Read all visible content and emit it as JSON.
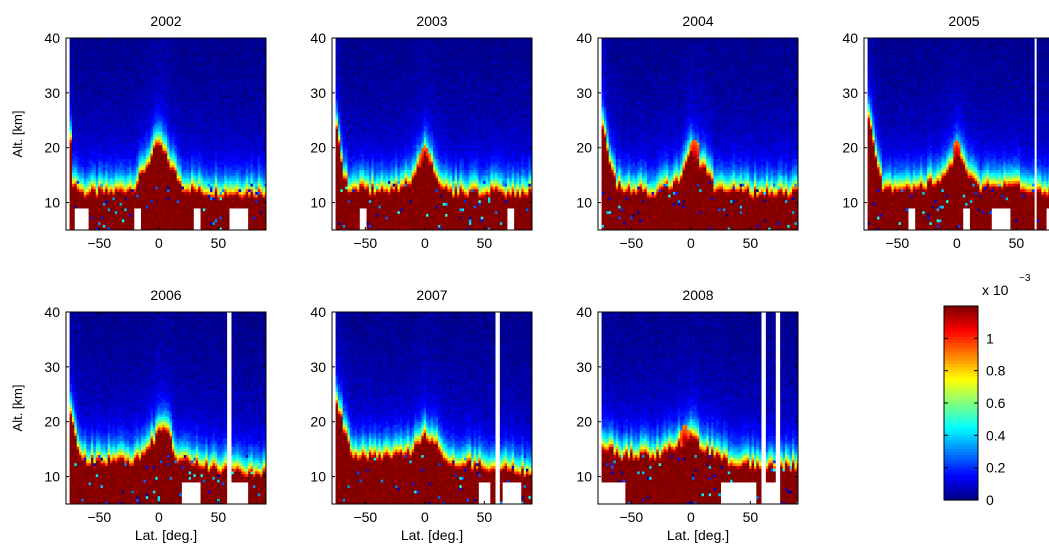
{
  "figure": {
    "ylabel": "Alt. [km]",
    "xlabel": "Lat. [deg.]"
  },
  "colorbar": {
    "exponent_base": "x 10",
    "exponent_power": "−3",
    "ticks": [
      {
        "value": 0,
        "label": "0"
      },
      {
        "value": 0.2,
        "label": "0.2"
      },
      {
        "value": 0.4,
        "label": "0.4"
      },
      {
        "value": 0.6,
        "label": "0.6"
      },
      {
        "value": 0.8,
        "label": "0.8"
      },
      {
        "value": 1,
        "label": "1"
      }
    ],
    "range": [
      0,
      1.2
    ],
    "colormap": "jet"
  },
  "chart_data": [
    {
      "type": "heatmap",
      "title": "2002",
      "xlim": [
        -78,
        90
      ],
      "ylim": [
        5,
        40
      ],
      "x_ticks": [
        -50,
        0,
        50
      ],
      "x_tick_labels": [
        "−50",
        "0",
        "50"
      ],
      "y_ticks": [
        10,
        20,
        30,
        40
      ],
      "y_tick_labels": [
        "10",
        "20",
        "30",
        "40"
      ],
      "data_lat_range": [
        -75,
        90
      ],
      "gaps": [],
      "profile": [
        [
          -75,
          25
        ],
        [
          -72,
          15
        ],
        [
          -65,
          13
        ],
        [
          -40,
          13
        ],
        [
          -20,
          14
        ],
        [
          -10,
          18
        ],
        [
          0,
          22
        ],
        [
          10,
          18
        ],
        [
          20,
          14
        ],
        [
          40,
          13
        ],
        [
          60,
          13
        ],
        [
          90,
          13
        ]
      ],
      "enhancements": [
        [
          0,
          16,
          6
        ]
      ],
      "missing_bottom": [
        [
          -70,
          -60
        ],
        [
          -20,
          -15
        ],
        [
          30,
          35
        ],
        [
          60,
          75
        ]
      ]
    },
    {
      "type": "heatmap",
      "title": "2003",
      "xlim": [
        -78,
        90
      ],
      "ylim": [
        5,
        40
      ],
      "x_ticks": [
        -50,
        0,
        50
      ],
      "x_tick_labels": [
        "−50",
        "0",
        "50"
      ],
      "y_ticks": [
        10,
        20,
        30,
        40
      ],
      "y_tick_labels": [
        "10",
        "20",
        "30",
        "40"
      ],
      "data_lat_range": [
        -75,
        90
      ],
      "gaps": [],
      "profile": [
        [
          -75,
          26
        ],
        [
          -70,
          18
        ],
        [
          -65,
          14
        ],
        [
          -30,
          13
        ],
        [
          -10,
          15
        ],
        [
          0,
          21
        ],
        [
          10,
          16
        ],
        [
          20,
          13
        ],
        [
          50,
          13
        ],
        [
          90,
          13
        ]
      ],
      "enhancements": [
        [
          0,
          17,
          5
        ]
      ],
      "missing_bottom": [
        [
          -55,
          -50
        ],
        [
          70,
          75
        ]
      ]
    },
    {
      "type": "heatmap",
      "title": "2004",
      "xlim": [
        -78,
        90
      ],
      "ylim": [
        5,
        40
      ],
      "x_ticks": [
        -50,
        0,
        50
      ],
      "x_tick_labels": [
        "−50",
        "0",
        "50"
      ],
      "y_ticks": [
        10,
        20,
        30,
        40
      ],
      "y_tick_labels": [
        "10",
        "20",
        "30",
        "40"
      ],
      "data_lat_range": [
        -75,
        90
      ],
      "gaps": [],
      "profile": [
        [
          -75,
          27
        ],
        [
          -68,
          18
        ],
        [
          -62,
          14
        ],
        [
          -30,
          13
        ],
        [
          -10,
          15
        ],
        [
          0,
          20
        ],
        [
          10,
          18
        ],
        [
          20,
          14
        ],
        [
          50,
          13
        ],
        [
          90,
          13
        ]
      ],
      "enhancements": [
        [
          3,
          18,
          5
        ]
      ],
      "missing_bottom": []
    },
    {
      "type": "heatmap",
      "title": "2005",
      "xlim": [
        -78,
        90
      ],
      "ylim": [
        5,
        40
      ],
      "x_ticks": [
        -50,
        0,
        50
      ],
      "x_tick_labels": [
        "−50",
        "0",
        "50"
      ],
      "y_ticks": [
        10,
        20,
        30,
        40
      ],
      "y_tick_labels": [
        "10",
        "20",
        "30",
        "40"
      ],
      "data_lat_range": [
        -75,
        90
      ],
      "gaps": [
        [
          65,
          67
        ]
      ],
      "profile": [
        [
          -75,
          27
        ],
        [
          -68,
          20
        ],
        [
          -62,
          14
        ],
        [
          -30,
          14
        ],
        [
          -10,
          16
        ],
        [
          0,
          20
        ],
        [
          10,
          16
        ],
        [
          20,
          14
        ],
        [
          50,
          14
        ],
        [
          90,
          13
        ]
      ],
      "enhancements": [
        [
          0,
          18,
          4
        ]
      ],
      "missing_bottom": [
        [
          -40,
          -35
        ],
        [
          5,
          10
        ],
        [
          30,
          45
        ],
        [
          75,
          85
        ]
      ]
    },
    {
      "type": "heatmap",
      "title": "2006",
      "xlim": [
        -78,
        90
      ],
      "ylim": [
        5,
        40
      ],
      "x_ticks": [
        -50,
        0,
        50
      ],
      "x_tick_labels": [
        "−50",
        "0",
        "50"
      ],
      "y_ticks": [
        10,
        20,
        30,
        40
      ],
      "y_tick_labels": [
        "10",
        "20",
        "30",
        "40"
      ],
      "data_lat_range": [
        -75,
        90
      ],
      "gaps": [
        [
          58,
          61
        ]
      ],
      "profile": [
        [
          -75,
          24
        ],
        [
          -68,
          16
        ],
        [
          -62,
          14
        ],
        [
          -20,
          14
        ],
        [
          -10,
          16
        ],
        [
          5,
          21
        ],
        [
          15,
          14
        ],
        [
          40,
          13
        ],
        [
          60,
          12
        ],
        [
          90,
          12
        ]
      ],
      "enhancements": [],
      "missing_bottom": [
        [
          20,
          35
        ],
        [
          62,
          75
        ]
      ]
    },
    {
      "type": "heatmap",
      "title": "2007",
      "xlim": [
        -78,
        90
      ],
      "ylim": [
        5,
        40
      ],
      "x_ticks": [
        -50,
        0,
        50
      ],
      "x_tick_labels": [
        "−50",
        "0",
        "50"
      ],
      "y_ticks": [
        10,
        20,
        30,
        40
      ],
      "y_tick_labels": [
        "10",
        "20",
        "30",
        "40"
      ],
      "data_lat_range": [
        -75,
        90
      ],
      "gaps": [
        [
          60,
          62
        ]
      ],
      "profile": [
        [
          -75,
          25
        ],
        [
          -68,
          20
        ],
        [
          -60,
          15
        ],
        [
          -30,
          15
        ],
        [
          -10,
          16
        ],
        [
          0,
          19
        ],
        [
          10,
          17
        ],
        [
          20,
          14
        ],
        [
          50,
          13
        ],
        [
          90,
          12
        ]
      ],
      "enhancements": [],
      "missing_bottom": [
        [
          45,
          55
        ],
        [
          65,
          80
        ]
      ]
    },
    {
      "type": "heatmap",
      "title": "2008",
      "xlim": [
        -78,
        90
      ],
      "ylim": [
        5,
        40
      ],
      "x_ticks": [
        -50,
        0,
        50
      ],
      "x_tick_labels": [
        "−50",
        "0",
        "50"
      ],
      "y_ticks": [
        10,
        20,
        30,
        40
      ],
      "y_tick_labels": [
        "10",
        "20",
        "30",
        "40"
      ],
      "data_lat_range": [
        -75,
        90
      ],
      "gaps": [
        [
          60,
          62
        ],
        [
          72,
          74
        ]
      ],
      "profile": [
        [
          -75,
          17
        ],
        [
          -60,
          15
        ],
        [
          -30,
          15
        ],
        [
          -10,
          17
        ],
        [
          0,
          19
        ],
        [
          10,
          16
        ],
        [
          30,
          14
        ],
        [
          60,
          13
        ],
        [
          90,
          13
        ]
      ],
      "enhancements": [
        [
          -5,
          16,
          4
        ]
      ],
      "missing_bottom": [
        [
          -75,
          -55
        ],
        [
          25,
          55
        ],
        [
          62,
          72
        ]
      ]
    }
  ]
}
